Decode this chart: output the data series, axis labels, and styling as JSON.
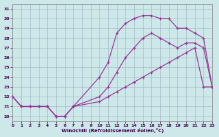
{
  "xlabel": "Windchill (Refroidissement éolien,°C)",
  "xlim": [
    0,
    23
  ],
  "ylim": [
    19.5,
    31.5
  ],
  "yticks": [
    20,
    21,
    22,
    23,
    24,
    25,
    26,
    27,
    28,
    29,
    30,
    31
  ],
  "xticks": [
    0,
    1,
    2,
    3,
    4,
    5,
    6,
    7,
    8,
    9,
    10,
    11,
    12,
    13,
    14,
    15,
    16,
    17,
    18,
    19,
    20,
    21,
    22,
    23
  ],
  "bg_color": "#cce8e8",
  "grid_color": "#aabbcc",
  "line_color": "#993399",
  "line1_x": [
    0,
    1,
    2,
    3,
    4,
    5,
    6,
    7,
    10,
    11,
    12,
    13,
    14,
    15,
    16,
    17,
    18,
    19,
    20,
    21,
    22,
    23
  ],
  "line1_y": [
    22,
    21,
    21,
    21,
    21,
    20,
    20,
    21,
    21.5,
    22,
    22.5,
    23,
    23.5,
    24,
    24.5,
    25,
    25.5,
    26,
    26.5,
    27,
    23,
    23
  ],
  "line2_x": [
    0,
    1,
    2,
    3,
    4,
    5,
    6,
    7,
    10,
    11,
    12,
    13,
    14,
    15,
    16,
    17,
    18,
    19,
    20,
    21,
    22,
    23
  ],
  "line2_y": [
    22,
    21,
    21,
    21,
    21,
    20,
    20,
    21,
    22,
    23,
    24.5,
    26,
    27,
    28,
    28.5,
    28,
    27.5,
    27,
    27.5,
    27.5,
    27,
    23
  ],
  "line3_x": [
    0,
    1,
    2,
    3,
    4,
    5,
    6,
    7,
    10,
    11,
    12,
    13,
    14,
    15,
    16,
    17,
    18,
    19,
    20,
    21,
    22,
    23
  ],
  "line3_y": [
    22,
    21,
    21,
    21,
    21,
    20,
    20,
    21,
    24,
    25.5,
    28.5,
    29.5,
    30,
    30.3,
    30.3,
    30,
    30,
    29,
    29,
    28.5,
    28,
    23
  ]
}
